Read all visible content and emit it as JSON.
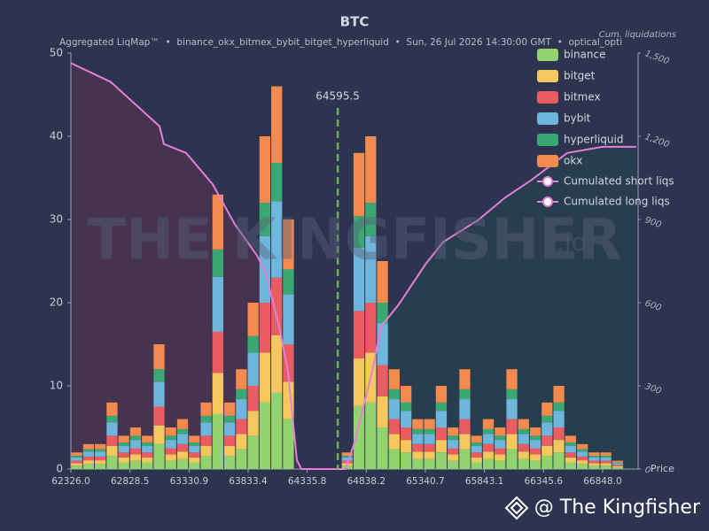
{
  "chart_data": {
    "type": "histogram",
    "title": "BTC",
    "subtitle": "Aggregated LiqMap™  •  binance_okx_bitmex_bybit_bitget_hyperliquid  •  Sun, 26 Jul 2026 14:30:00 GMT  •  optical_opti",
    "y2label": "Cum. liquidations",
    "xlabel": "Price",
    "current_price": 64595.5,
    "watermark": "THE KINGFISHER",
    "watermark_suffix": ".io",
    "footer": "@ The Kingfisher",
    "legend": "upper right",
    "xlim": [
      62326,
      67150
    ],
    "xticks": [
      {
        "value": 62326.0,
        "label": "62326.0"
      },
      62828.5,
      63330.9,
      63833.4,
      64335.8,
      64838.2,
      65340.7,
      65843.1,
      66345.6,
      {
        "value": 66848.0,
        "label": "66848.0"
      }
    ],
    "ylim": [
      0,
      50
    ],
    "yticks": [
      0,
      10,
      20,
      30,
      40,
      50
    ],
    "y2lim": [
      0,
      1500
    ],
    "y2ticks": [
      0,
      300,
      600,
      900,
      {
        "value": 1200,
        "label": "1,200"
      },
      {
        "value": 1500,
        "label": "1,500"
      }
    ],
    "bins": [
      62326,
      62426,
      62526,
      62626,
      62726,
      62826,
      62926,
      63026,
      63126,
      63226,
      63326,
      63426,
      63526,
      63626,
      63726,
      63826,
      63926,
      64026,
      64126,
      64226,
      64326,
      64426,
      64526,
      64626,
      64726,
      64826,
      64926,
      65026,
      65126,
      65226,
      65326,
      65426,
      65526,
      65626,
      65726,
      65826,
      65926,
      66026,
      66126,
      66226,
      66326,
      66426,
      66526,
      66626,
      66726,
      66826,
      66926,
      67026,
      67126
    ],
    "series": [
      {
        "name": "binance",
        "color": "#93d36e",
        "values": [
          0.4,
          0.6,
          0.6,
          1.6,
          0.8,
          1,
          0.8,
          3,
          1,
          1.2,
          0.8,
          1.6,
          6.6,
          1.6,
          2.4,
          4,
          8,
          9.2,
          6,
          0,
          0,
          0,
          0,
          0.4,
          7.6,
          8,
          5,
          2.4,
          2,
          1.2,
          1.2,
          2,
          1,
          2.4,
          0.8,
          1.2,
          1,
          2.4,
          1.2,
          1,
          1.6,
          2,
          0.8,
          0.6,
          0.4,
          0.4,
          0.2,
          0
        ]
      },
      {
        "name": "bitget",
        "color": "#f5c85e",
        "values": [
          0.3,
          0.45,
          0.45,
          1.2,
          0.6,
          0.75,
          0.6,
          2.25,
          0.75,
          0.9,
          0.6,
          1.2,
          4.95,
          1.2,
          1.8,
          3,
          6,
          6.9,
          4.5,
          0,
          0,
          0,
          0,
          0.3,
          5.7,
          6,
          3.75,
          1.8,
          1.5,
          0.9,
          0.9,
          1.5,
          0.75,
          1.8,
          0.6,
          0.9,
          0.75,
          1.8,
          0.9,
          0.75,
          1.2,
          1.5,
          0.6,
          0.45,
          0.3,
          0.3,
          0.15,
          0
        ]
      },
      {
        "name": "bitmex",
        "color": "#e85c62",
        "values": [
          0.3,
          0.45,
          0.45,
          1.2,
          0.6,
          0.75,
          0.6,
          2.25,
          0.75,
          0.9,
          0.6,
          1.2,
          4.95,
          1.2,
          1.8,
          3,
          6,
          6.9,
          4.5,
          0,
          0,
          0,
          0,
          0.3,
          5.7,
          6,
          3.75,
          1.8,
          1.5,
          0.9,
          0.9,
          1.5,
          0.75,
          1.8,
          0.6,
          0.9,
          0.75,
          1.8,
          0.9,
          0.75,
          1.2,
          1.5,
          0.6,
          0.45,
          0.3,
          0.3,
          0.15,
          0
        ]
      },
      {
        "name": "bybit",
        "color": "#6fb6dc",
        "values": [
          0.4,
          0.6,
          0.6,
          1.6,
          0.8,
          1,
          0.8,
          3,
          1,
          1.2,
          0.8,
          1.6,
          6.6,
          1.6,
          2.4,
          4,
          8,
          9.2,
          6,
          0,
          0,
          0,
          0,
          0.4,
          7.6,
          8,
          5,
          2.4,
          2,
          1.2,
          1.2,
          2,
          1,
          2.4,
          0.8,
          1.2,
          1,
          2.4,
          1.2,
          1,
          1.6,
          2,
          0.8,
          0.6,
          0.4,
          0.4,
          0.2,
          0
        ]
      },
      {
        "name": "hyperliquid",
        "color": "#3ba874",
        "values": [
          0.2,
          0.3,
          0.3,
          0.8,
          0.4,
          0.5,
          0.4,
          1.5,
          0.5,
          0.6,
          0.4,
          0.8,
          3.3,
          0.8,
          1.2,
          2,
          4,
          4.6,
          3,
          0,
          0,
          0,
          0,
          0.2,
          3.8,
          4,
          2.5,
          1.2,
          1,
          0.6,
          0.6,
          1,
          0.5,
          1.2,
          0.4,
          0.6,
          0.5,
          1.2,
          0.6,
          0.5,
          0.8,
          1,
          0.4,
          0.3,
          0.2,
          0.2,
          0.1,
          0
        ]
      },
      {
        "name": "okx",
        "color": "#f48a4e",
        "values": [
          0.4,
          0.6,
          0.6,
          1.6,
          0.8,
          1,
          0.8,
          3,
          1,
          1.2,
          0.8,
          1.6,
          6.6,
          1.6,
          2.4,
          4,
          8,
          9.2,
          6,
          0,
          0,
          0,
          0,
          0.4,
          7.6,
          8,
          5,
          2.4,
          2,
          1.2,
          1.2,
          2,
          1,
          2.4,
          0.8,
          1.2,
          1,
          2.4,
          1.2,
          1,
          1.6,
          2,
          0.8,
          0.6,
          0.4,
          0.4,
          0.2,
          0
        ]
      }
    ],
    "lines": [
      {
        "name": "Cumulated short liqs",
        "color": "#e77fd8",
        "axis": "y2",
        "fill": "#28414d",
        "x": [
          64286,
          64662,
          64738,
          64889,
          64964,
          65115,
          65341,
          65492,
          65793,
          66019,
          66245,
          66547,
          66848,
          67134
        ],
        "values": [
          0,
          0,
          96,
          353,
          514,
          594,
          738,
          819,
          899,
          979,
          1043,
          1140,
          1162,
          1162
        ]
      },
      {
        "name": "Cumulated long liqs",
        "color": "#e77fd8",
        "axis": "y2",
        "fill": "#4a3450",
        "x": [
          62326,
          62665,
          63080,
          63117,
          63306,
          63532,
          63720,
          63909,
          63984,
          64097,
          64172,
          64248,
          64286
        ],
        "values": [
          1464,
          1396,
          1236,
          1172,
          1140,
          1027,
          883,
          770,
          706,
          514,
          353,
          32,
          0
        ]
      }
    ]
  }
}
